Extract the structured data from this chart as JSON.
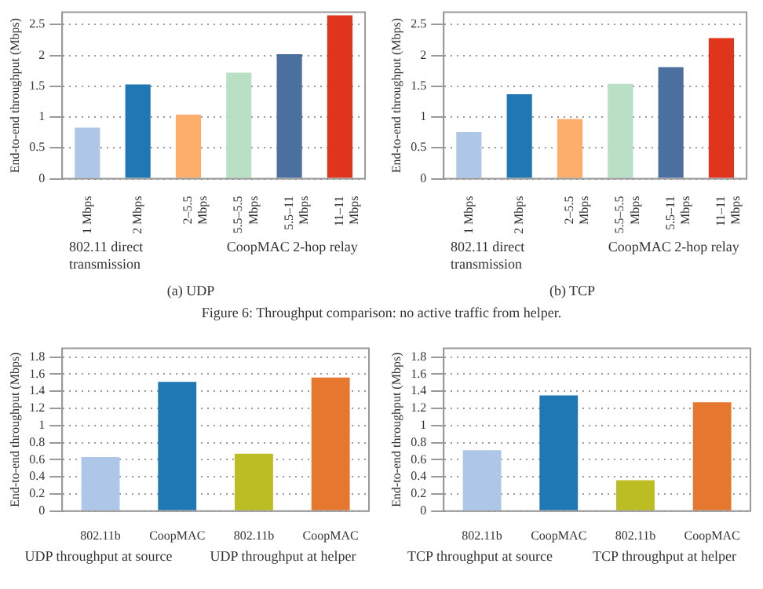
{
  "chart_data": [
    {
      "type": "bar",
      "title": "(a) UDP",
      "ylabel": "End-to-end throughput (Mbps)",
      "categories": [
        "1 Mbps",
        "2 Mbps",
        "2–5.5 Mbps",
        "5.5–5.5 Mbps",
        "5.5–11 Mbps",
        "11–11 Mbps"
      ],
      "values": [
        0.83,
        1.53,
        1.04,
        1.72,
        2.02,
        2.65
      ],
      "colors": [
        "#aec7e8",
        "#1f77b4",
        "#fdae6b",
        "#b9e0c5",
        "#4b6f9e",
        "#e0341c"
      ],
      "ylim": [
        0,
        2.7
      ],
      "yticks": [
        0,
        0.5,
        1,
        1.5,
        2,
        2.5
      ],
      "grid": "y",
      "annotations": [
        "802.11 direct transmission",
        "CoopMAC 2-hop relay",
        "Figure 6: Throughput comparison: no active traffic from helper."
      ]
    },
    {
      "type": "bar",
      "title": "(b) TCP",
      "ylabel": "End-to-end throughput (Mbps)",
      "categories": [
        "1 Mbps",
        "2 Mbps",
        "2–5.5 Mbps",
        "5.5–5.5 Mbps",
        "5.5–11 Mbps",
        "11–11 Mbps"
      ],
      "values": [
        0.76,
        1.37,
        0.97,
        1.54,
        1.81,
        2.28
      ],
      "colors": [
        "#aec7e8",
        "#1f77b4",
        "#fdae6b",
        "#b9e0c5",
        "#4b6f9e",
        "#e0341c"
      ],
      "ylim": [
        0,
        2.7
      ],
      "yticks": [
        0,
        0.5,
        1,
        1.5,
        2,
        2.5
      ],
      "grid": "y",
      "annotations": [
        "802.11 direct transmission",
        "CoopMAC 2-hop relay"
      ]
    },
    {
      "type": "bar",
      "ylabel": "End-to-end throughput (Mbps)",
      "categories": [
        "802.11b",
        "CoopMAC",
        "802.11b",
        "CoopMAC"
      ],
      "values": [
        0.63,
        1.51,
        0.67,
        1.56
      ],
      "colors": [
        "#aec7e8",
        "#1f77b4",
        "#bcbd22",
        "#e6772e"
      ],
      "ylim": [
        0,
        1.9
      ],
      "yticks": [
        0,
        0.2,
        0.4,
        0.6,
        0.8,
        1,
        1.2,
        1.4,
        1.6,
        1.8
      ],
      "grid": "y",
      "annotations": [
        "UDP throughput at source",
        "UDP throughput at helper"
      ]
    },
    {
      "type": "bar",
      "ylabel": "End-to-end throughput (Mbps)",
      "categories": [
        "802.11b",
        "CoopMAC",
        "802.11b",
        "CoopMAC"
      ],
      "values": [
        0.71,
        1.35,
        0.36,
        1.27
      ],
      "colors": [
        "#aec7e8",
        "#1f77b4",
        "#bcbd22",
        "#e6772e"
      ],
      "ylim": [
        0,
        1.9
      ],
      "yticks": [
        0,
        0.2,
        0.4,
        0.6,
        0.8,
        1,
        1.2,
        1.4,
        1.6,
        1.8
      ],
      "grid": "y",
      "annotations": [
        "TCP throughput at source",
        "TCP throughput at helper"
      ]
    }
  ]
}
